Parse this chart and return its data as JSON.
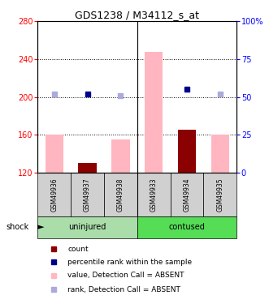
{
  "title": "GDS1238 / M34112_s_at",
  "samples": [
    "GSM49936",
    "GSM49937",
    "GSM49938",
    "GSM49933",
    "GSM49934",
    "GSM49935"
  ],
  "ylim_left": [
    120,
    280
  ],
  "ylim_right": [
    0,
    100
  ],
  "yticks_left": [
    120,
    160,
    200,
    240,
    280
  ],
  "yticks_right": [
    0,
    25,
    50,
    75,
    100
  ],
  "count_values": [
    0,
    130,
    0,
    0,
    165,
    0
  ],
  "absent_value_bars": [
    160,
    0,
    155,
    248,
    0,
    160
  ],
  "percentile_rank": [
    null,
    52,
    null,
    null,
    55,
    null
  ],
  "absent_rank": [
    52,
    null,
    51,
    null,
    null,
    52
  ],
  "bar_color_red": "#8B0000",
  "bar_color_pink": "#FFB6C1",
  "dot_color_blue": "#00008B",
  "dot_color_lightblue": "#AAAADD",
  "group_uninjured_color": "#AADDAA",
  "group_contused_color": "#55DD55",
  "sample_box_color": "#D0D0D0",
  "shock_label": "shock",
  "legend_items": [
    {
      "label": "count",
      "color": "#8B0000"
    },
    {
      "label": "percentile rank within the sample",
      "color": "#00008B"
    },
    {
      "label": "value, Detection Call = ABSENT",
      "color": "#FFB6C1"
    },
    {
      "label": "rank, Detection Call = ABSENT",
      "color": "#AAAADD"
    }
  ]
}
